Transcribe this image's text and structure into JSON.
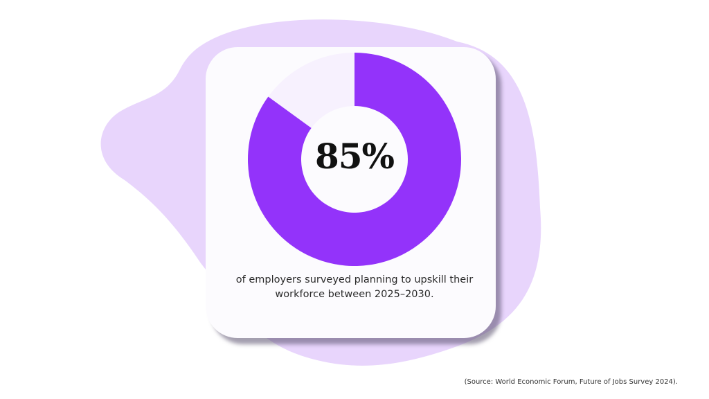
{
  "chart_data": {
    "type": "pie",
    "variant": "donut",
    "categories": [
      "planning to upskill",
      "other"
    ],
    "values": [
      85,
      15
    ],
    "center_label": "85%",
    "colors": {
      "primary": "#9333fa",
      "remainder": "#f7f1fe",
      "blob": "#e8d5fc",
      "card": "#fcfbfe"
    }
  },
  "caption": "of employers surveyed planning to upskill their workforce between 2025–2030.",
  "source": "(Source: World Economic Forum, Future of Jobs Survey 2024)."
}
